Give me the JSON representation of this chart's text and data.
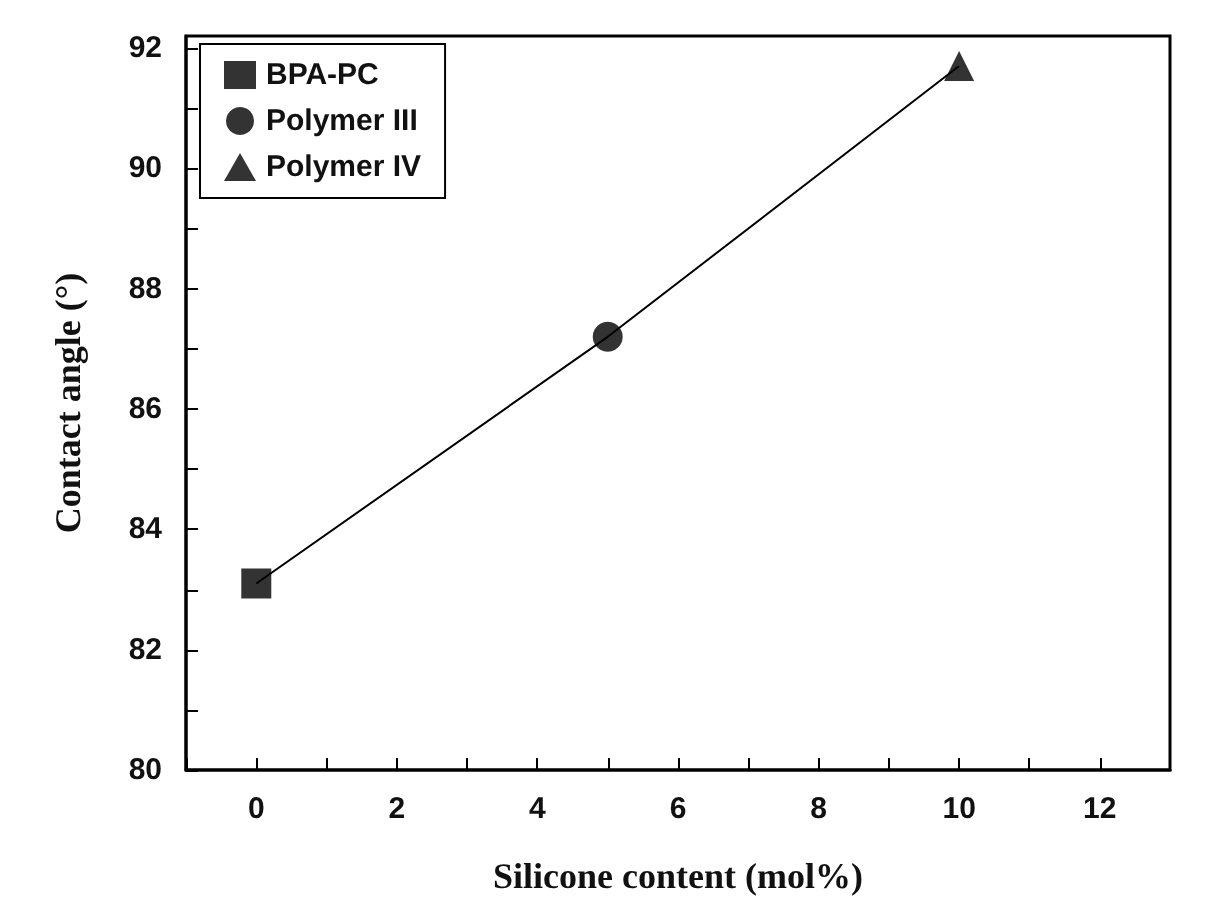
{
  "chart_data": {
    "type": "scatter",
    "xlabel": "Silicone content (mol%)",
    "ylabel": "Contact angle (°)",
    "series": [
      {
        "type": "line",
        "x": [
          0,
          5,
          10
        ],
        "values": [
          83.1,
          87.2,
          91.7
        ],
        "color": "#000000",
        "marker": "none"
      },
      {
        "name": "BPA-PC",
        "x": [
          0
        ],
        "values": [
          83.1
        ],
        "color": "#000000",
        "marker": "square"
      },
      {
        "name": "Polymer III",
        "x": [
          5
        ],
        "values": [
          87.2
        ],
        "color": "#000000",
        "marker": "circle"
      },
      {
        "name": "Polymer IV",
        "x": [
          10
        ],
        "values": [
          91.7
        ],
        "color": "#000000",
        "marker": "triangle"
      }
    ],
    "xlim": [
      -1,
      13
    ],
    "xticks": [
      {
        "value": -1,
        "label": null
      },
      0,
      {
        "value": 1,
        "label": null
      },
      2,
      {
        "value": 3,
        "label": null
      },
      4,
      {
        "value": 5,
        "label": null
      },
      6,
      {
        "value": 7,
        "label": null
      },
      8,
      {
        "value": 9,
        "label": null
      },
      10,
      {
        "value": 11,
        "label": null
      },
      12
    ],
    "ylim": [
      80,
      92.2
    ],
    "yticks": [
      80,
      {
        "value": 81,
        "label": null
      },
      82,
      {
        "value": 83,
        "label": null
      },
      84,
      {
        "value": 85,
        "label": null
      },
      86,
      {
        "value": 87,
        "label": null
      },
      88,
      {
        "value": 89,
        "label": null
      },
      90,
      {
        "value": 91,
        "label": null
      },
      92
    ],
    "legend": "top left",
    "grid": false
  }
}
